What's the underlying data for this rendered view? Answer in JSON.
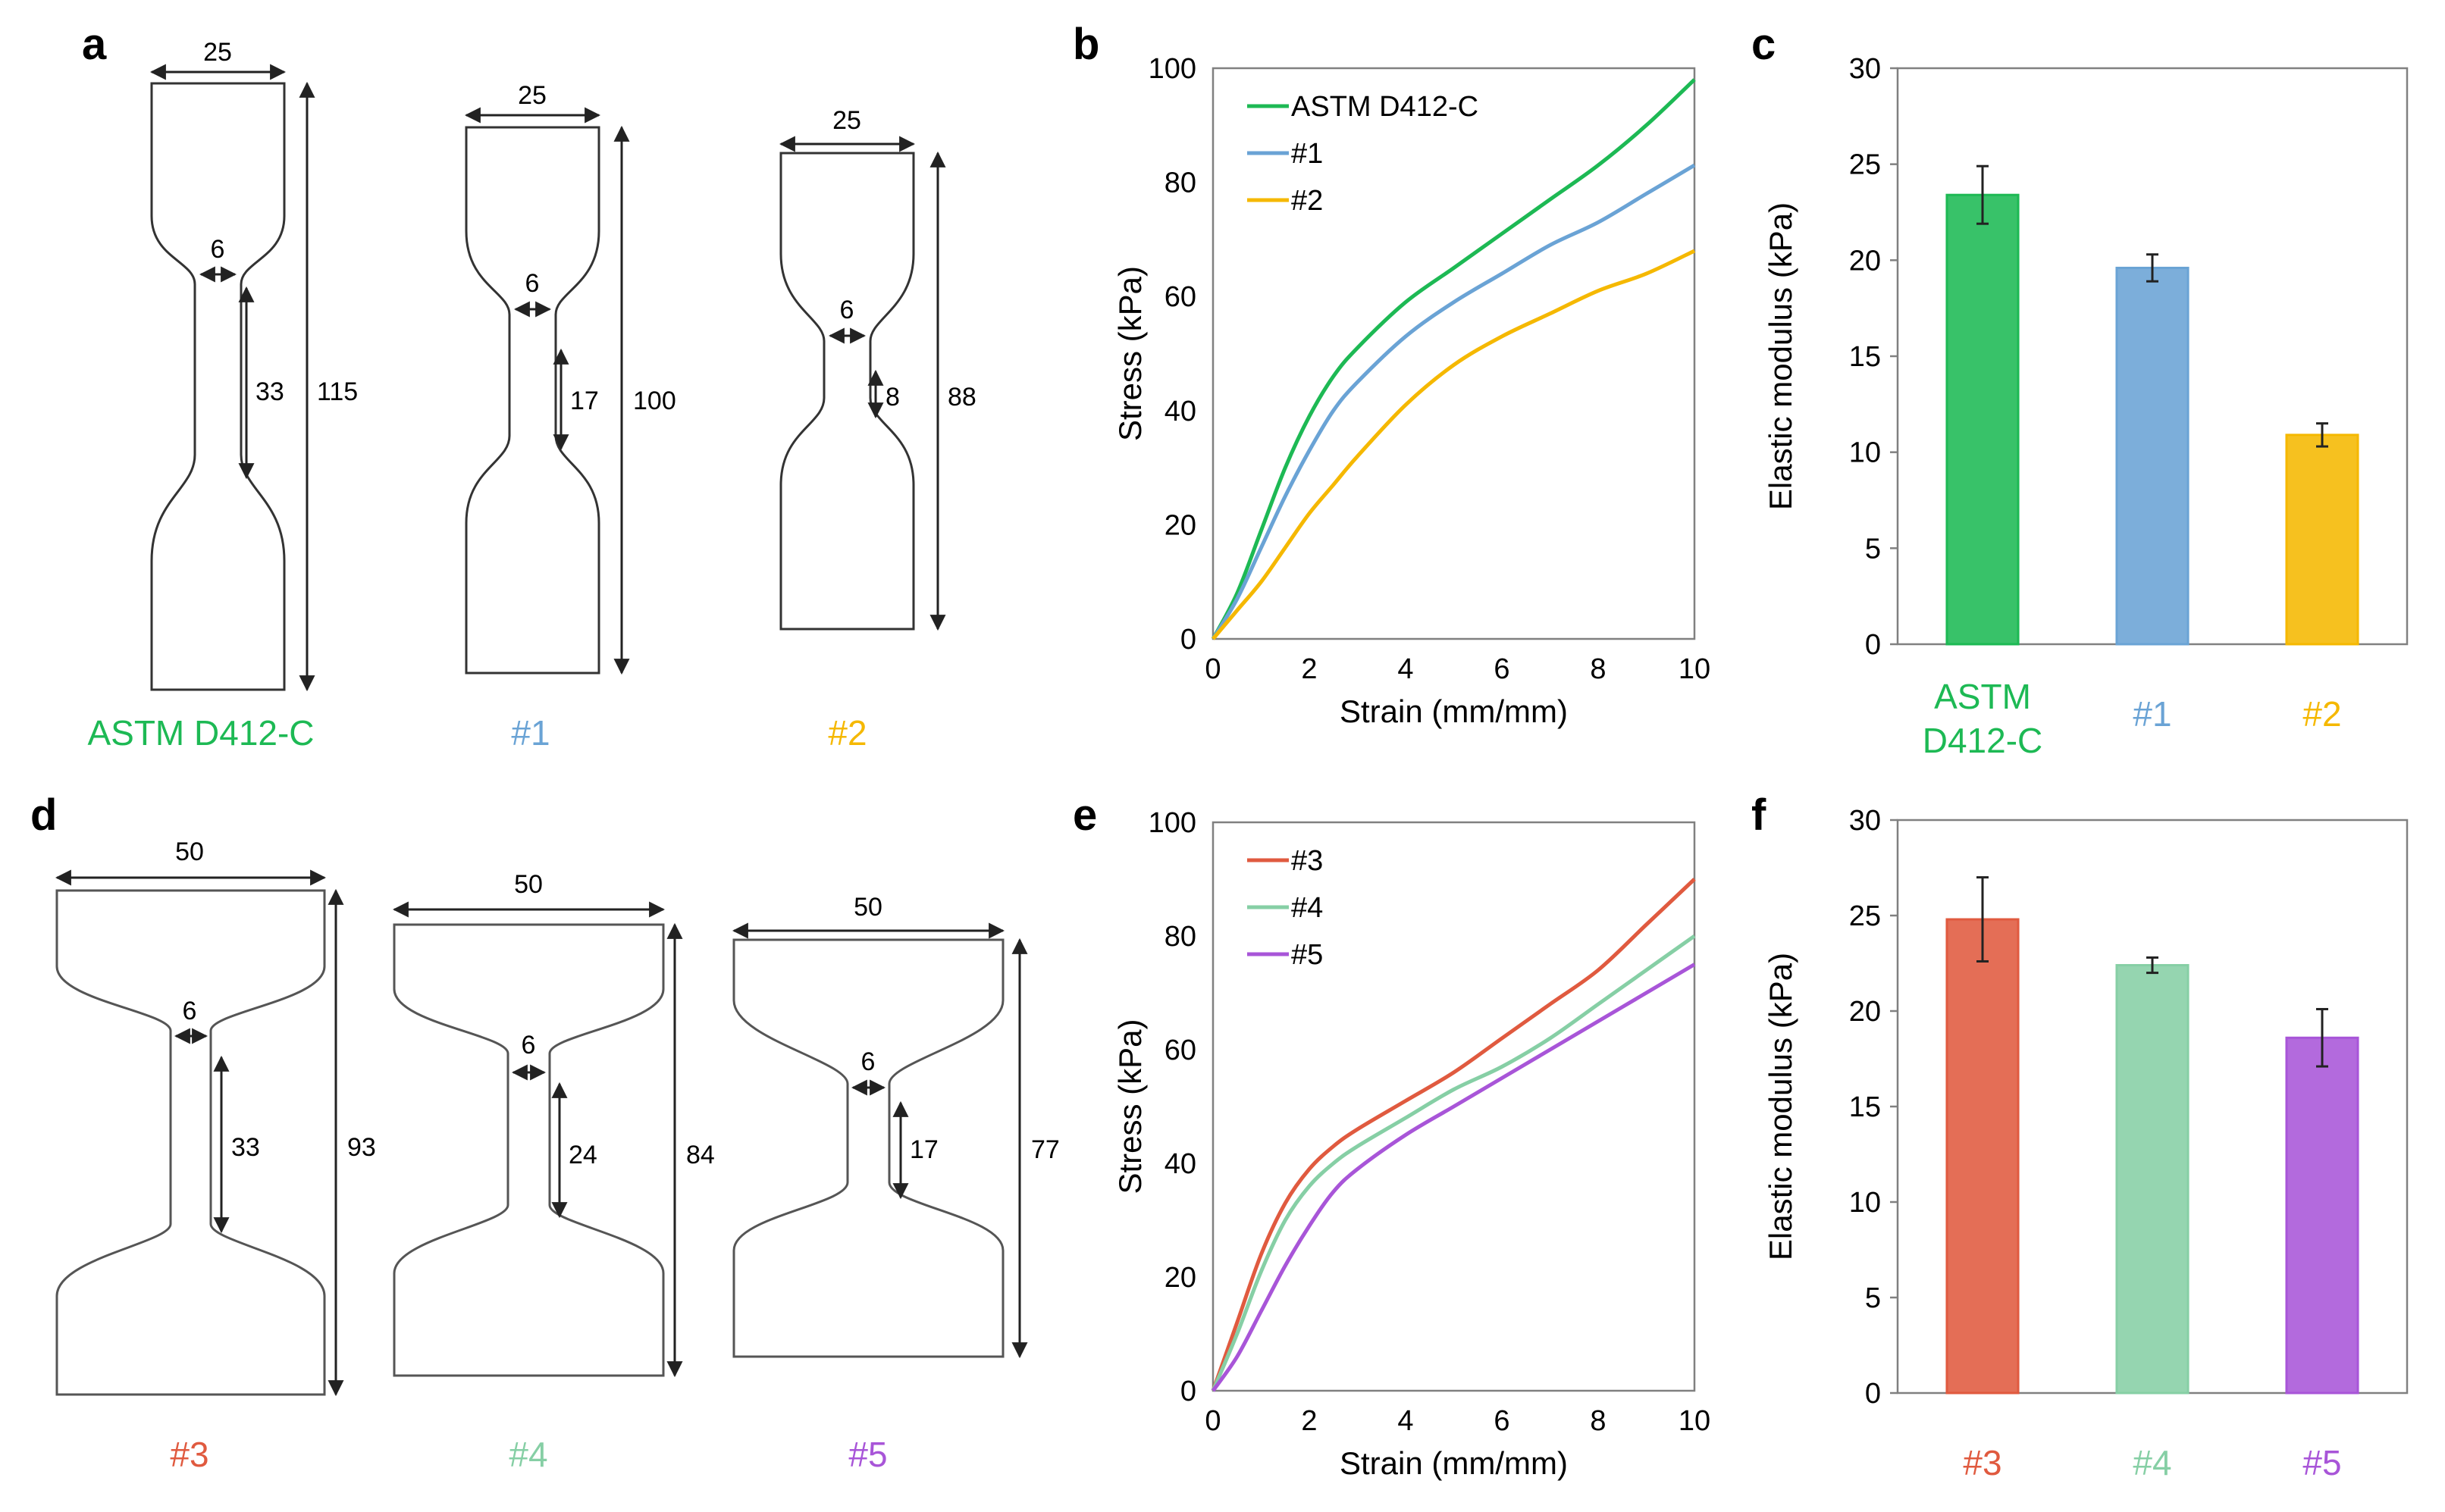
{
  "colors": {
    "astm": "#1db954",
    "s1": "#6aa3d5",
    "s2": "#f5b800",
    "s3": "#e05a3f",
    "s4": "#86cfa5",
    "s5": "#a855d8",
    "outline": "#333333",
    "arrow": "#222222"
  },
  "panels": {
    "a": "a",
    "b": "b",
    "c": "c",
    "d": "d",
    "e": "e",
    "f": "f"
  },
  "specimens_top": [
    {
      "label": "ASTM D412-C",
      "color_key": "astm",
      "width": "25",
      "neck_width": "6",
      "gauge": "33",
      "length": "115"
    },
    {
      "label": "#1",
      "color_key": "s1",
      "width": "25",
      "neck_width": "6",
      "gauge": "17",
      "length": "100"
    },
    {
      "label": "#2",
      "color_key": "s2",
      "width": "25",
      "neck_width": "6",
      "gauge": "8",
      "length": "88"
    }
  ],
  "specimens_bottom": [
    {
      "label": "#3",
      "color_key": "s3",
      "width": "50",
      "neck_width": "6",
      "gauge": "33",
      "length": "93"
    },
    {
      "label": "#4",
      "color_key": "s4",
      "width": "50",
      "neck_width": "6",
      "gauge": "24",
      "length": "84"
    },
    {
      "label": "#5",
      "color_key": "s5",
      "width": "50",
      "neck_width": "6",
      "gauge": "17",
      "length": "77"
    }
  ],
  "chart_data": [
    {
      "id": "b",
      "type": "line",
      "xlabel": "Strain (mm/mm)",
      "ylabel": "Stress (kPa)",
      "xlim": [
        0,
        10
      ],
      "ylim": [
        0,
        100
      ],
      "xticks": [
        0,
        2,
        4,
        6,
        8,
        10
      ],
      "yticks": [
        0,
        20,
        40,
        60,
        80,
        100
      ],
      "legend": "top-left",
      "series": [
        {
          "name": "ASTM D412-C",
          "color_key": "astm",
          "x": [
            0,
            0.5,
            1,
            1.5,
            2,
            2.5,
            3,
            4,
            5,
            6,
            7,
            8,
            9,
            10
          ],
          "y": [
            0,
            8,
            19,
            30,
            39,
            46,
            51,
            59,
            65,
            71,
            77,
            83,
            90,
            98
          ]
        },
        {
          "name": "#1",
          "color_key": "s1",
          "x": [
            0,
            0.5,
            1,
            1.5,
            2,
            2.5,
            3,
            4,
            5,
            6,
            7,
            8,
            9,
            10
          ],
          "y": [
            0,
            7,
            16,
            25,
            33,
            40,
            45,
            53,
            59,
            64,
            69,
            73,
            78,
            83
          ]
        },
        {
          "name": "#2",
          "color_key": "s2",
          "x": [
            0,
            0.5,
            1,
            1.5,
            2,
            2.5,
            3,
            4,
            5,
            6,
            7,
            8,
            9,
            10
          ],
          "y": [
            0,
            5,
            10,
            16,
            22,
            27,
            32,
            41,
            48,
            53,
            57,
            61,
            64,
            68
          ]
        }
      ]
    },
    {
      "id": "c",
      "type": "bar",
      "ylabel": "Elastic modulus (kPa)",
      "ylim": [
        0,
        30
      ],
      "yticks": [
        0,
        5,
        10,
        15,
        20,
        25,
        30
      ],
      "categories": [
        "ASTM\nD412-C",
        "#1",
        "#2"
      ],
      "category_lines": [
        [
          "ASTM",
          "D412-C"
        ],
        [
          "#1"
        ],
        [
          "#2"
        ]
      ],
      "color_keys": [
        "astm",
        "s1",
        "s2"
      ],
      "values": [
        23.4,
        19.6,
        10.9
      ],
      "errors": [
        1.5,
        0.7,
        0.6
      ]
    },
    {
      "id": "e",
      "type": "line",
      "xlabel": "Strain (mm/mm)",
      "ylabel": "Stress (kPa)",
      "xlim": [
        0,
        10
      ],
      "ylim": [
        0,
        100
      ],
      "xticks": [
        0,
        2,
        4,
        6,
        8,
        10
      ],
      "yticks": [
        0,
        20,
        40,
        60,
        80,
        100
      ],
      "legend": "top-left",
      "series": [
        {
          "name": "#3",
          "color_key": "s3",
          "x": [
            0,
            0.5,
            1,
            1.5,
            2,
            2.5,
            3,
            4,
            5,
            6,
            7,
            8,
            9,
            10
          ],
          "y": [
            0,
            12,
            24,
            33,
            39,
            43,
            46,
            51,
            56,
            62,
            68,
            74,
            82,
            90
          ]
        },
        {
          "name": "#4",
          "color_key": "s4",
          "x": [
            0,
            0.5,
            1,
            1.5,
            2,
            2.5,
            3,
            4,
            5,
            6,
            7,
            8,
            9,
            10
          ],
          "y": [
            0,
            10,
            21,
            30,
            36,
            40,
            43,
            48,
            53,
            57,
            62,
            68,
            74,
            80
          ]
        },
        {
          "name": "#5",
          "color_key": "s5",
          "x": [
            0,
            0.5,
            1,
            1.5,
            2,
            2.5,
            3,
            4,
            5,
            6,
            7,
            8,
            9,
            10
          ],
          "y": [
            0,
            6,
            14,
            22,
            29,
            35,
            39,
            45,
            50,
            55,
            60,
            65,
            70,
            75
          ]
        }
      ]
    },
    {
      "id": "f",
      "type": "bar",
      "ylabel": "Elastic modulus (kPa)",
      "ylim": [
        0,
        30
      ],
      "yticks": [
        0,
        5,
        10,
        15,
        20,
        25,
        30
      ],
      "categories": [
        "#3",
        "#4",
        "#5"
      ],
      "category_lines": [
        [
          "#3"
        ],
        [
          "#4"
        ],
        [
          "#5"
        ]
      ],
      "color_keys": [
        "s3",
        "s4",
        "s5"
      ],
      "values": [
        24.8,
        22.4,
        18.6
      ],
      "errors": [
        2.2,
        0.4,
        1.5
      ]
    }
  ]
}
